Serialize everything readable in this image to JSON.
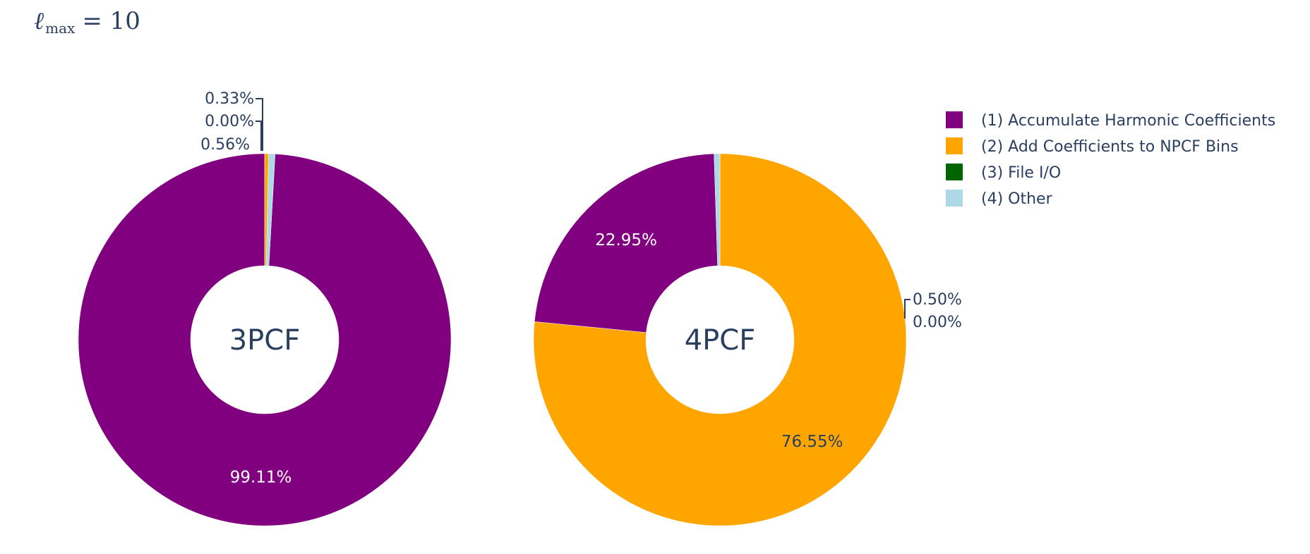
{
  "title": {
    "symbol": "ℓ",
    "subscript": "max",
    "value_text": "= 10"
  },
  "chart_data": {
    "type": "pie",
    "hole": true,
    "legend_position": "top-right",
    "legend": [
      {
        "label": "(1) Accumulate Harmonic Coefficients",
        "color": "#800080"
      },
      {
        "label": "(2) Add Coefficients to NPCF Bins",
        "color": "#FFA500"
      },
      {
        "label": "(3) File I/O",
        "color": "#006400"
      },
      {
        "label": "(4) Other",
        "color": "#ADD8E6"
      }
    ],
    "pies": [
      {
        "name": "3PCF",
        "slices": [
          {
            "category": "(1) Accumulate Harmonic Coefficients",
            "value": 99.11,
            "label": "99.11%",
            "color": "#800080"
          },
          {
            "category": "(4) Other",
            "value": 0.56,
            "label": "0.56%",
            "color": "#ADD8E6"
          },
          {
            "category": "(3) File I/O",
            "value": 0.0,
            "label": "0.00%",
            "color": "#006400"
          },
          {
            "category": "(2) Add Coefficients to NPCF Bins",
            "value": 0.33,
            "label": "0.33%",
            "color": "#FFA500"
          }
        ]
      },
      {
        "name": "4PCF",
        "slices": [
          {
            "category": "(2) Add Coefficients to NPCF Bins",
            "value": 76.55,
            "label": "76.55%",
            "color": "#FFA500"
          },
          {
            "category": "(1) Accumulate Harmonic Coefficients",
            "value": 22.95,
            "label": "22.95%",
            "color": "#800080"
          },
          {
            "category": "(4) Other",
            "value": 0.5,
            "label": "0.50%",
            "color": "#ADD8E6"
          },
          {
            "category": "(3) File I/O",
            "value": 0.0,
            "label": "0.00%",
            "color": "#006400"
          }
        ]
      }
    ]
  }
}
